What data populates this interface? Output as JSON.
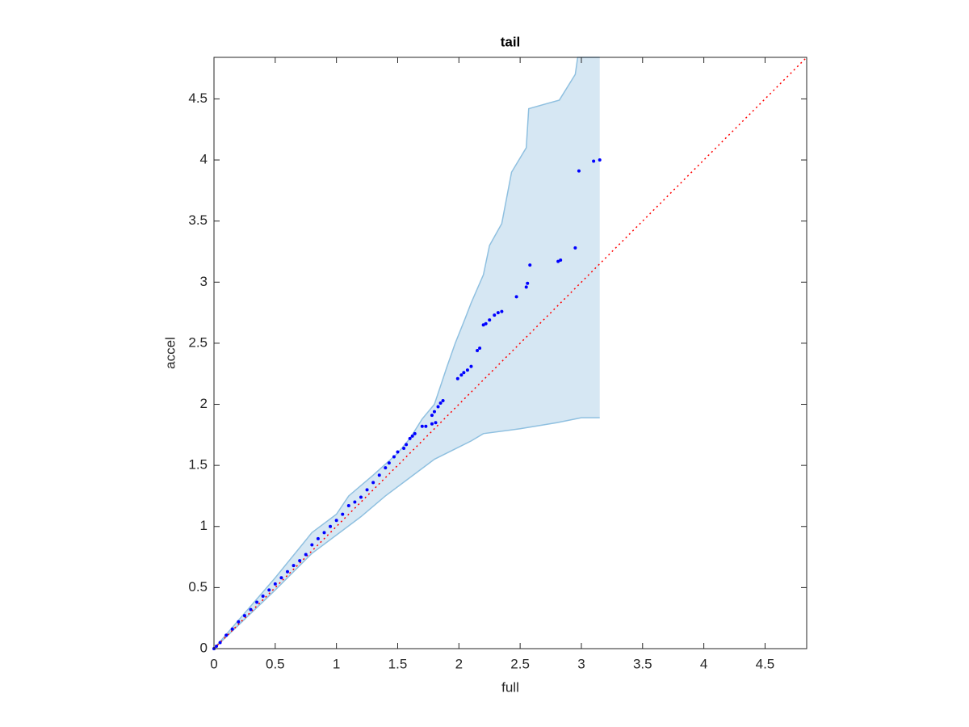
{
  "chart_data": {
    "type": "scatter",
    "title": "tail",
    "x_label": "full",
    "y_label": "accel",
    "xlim": [
      0,
      4.84
    ],
    "ylim": [
      0,
      4.84
    ],
    "xticks": [
      0,
      0.5,
      1,
      1.5,
      2,
      2.5,
      3,
      3.5,
      4,
      4.5
    ],
    "yticks": [
      0,
      0.5,
      1,
      1.5,
      2,
      2.5,
      3,
      3.5,
      4,
      4.5
    ],
    "color": "#0000ff",
    "x": [
      0,
      0.02,
      0.05,
      0.1,
      0.15,
      0.2,
      0.25,
      0.3,
      0.35,
      0.4,
      0.45,
      0.5,
      0.55,
      0.6,
      0.65,
      0.7,
      0.75,
      0.8,
      0.85,
      0.9,
      0.95,
      1.0,
      1.05,
      1.1,
      1.15,
      1.2,
      1.25,
      1.3,
      1.35,
      1.4,
      1.43,
      1.47,
      1.5,
      1.55,
      1.57,
      1.6,
      1.62,
      1.64,
      1.7,
      1.73,
      1.78,
      1.81,
      1.78,
      1.8,
      1.83,
      1.85,
      1.87,
      1.99,
      2.02,
      2.04,
      2.07,
      2.1,
      2.15,
      2.17,
      2.2,
      2.22,
      2.25,
      2.29,
      2.32,
      2.35,
      2.47,
      2.55,
      2.56,
      2.58,
      2.81,
      2.83,
      2.95,
      2.98,
      3.1,
      3.15
    ],
    "values": [
      0,
      0.02,
      0.05,
      0.11,
      0.16,
      0.22,
      0.27,
      0.32,
      0.38,
      0.43,
      0.48,
      0.53,
      0.58,
      0.63,
      0.68,
      0.72,
      0.77,
      0.85,
      0.9,
      0.95,
      1.0,
      1.05,
      1.1,
      1.17,
      1.2,
      1.24,
      1.3,
      1.36,
      1.42,
      1.48,
      1.52,
      1.57,
      1.61,
      1.64,
      1.67,
      1.72,
      1.74,
      1.76,
      1.82,
      1.82,
      1.84,
      1.85,
      1.91,
      1.94,
      1.98,
      2.01,
      2.03,
      2.21,
      2.24,
      2.26,
      2.28,
      2.31,
      2.44,
      2.46,
      2.65,
      2.66,
      2.69,
      2.73,
      2.75,
      2.76,
      2.88,
      2.96,
      2.99,
      3.14,
      3.17,
      3.18,
      3.28,
      3.91,
      3.99,
      4.0
    ],
    "band": {
      "color": "#d6e7f3",
      "edge_color": "#8fc0e0",
      "upper": {
        "x": [
          0,
          0.5,
          0.8,
          1.0,
          1.1,
          1.3,
          1.5,
          1.6,
          1.7,
          1.8,
          1.85,
          1.9,
          1.97,
          2.05,
          2.1,
          2.2,
          2.25,
          2.35,
          2.43,
          2.55,
          2.57,
          2.82,
          2.95,
          2.97,
          3.15
        ],
        "values": [
          0,
          0.58,
          0.95,
          1.1,
          1.25,
          1.42,
          1.6,
          1.72,
          1.88,
          2.0,
          2.15,
          2.3,
          2.5,
          2.7,
          2.83,
          3.06,
          3.3,
          3.48,
          3.9,
          4.1,
          4.42,
          4.49,
          4.7,
          4.84,
          4.84
        ]
      },
      "lower": {
        "x": [
          0,
          0.5,
          0.8,
          1.0,
          1.2,
          1.4,
          1.6,
          1.8,
          2.0,
          2.1,
          2.2,
          2.5,
          2.8,
          3.0,
          3.15
        ],
        "values": [
          0,
          0.48,
          0.78,
          0.93,
          1.08,
          1.25,
          1.4,
          1.55,
          1.65,
          1.7,
          1.76,
          1.8,
          1.85,
          1.89,
          1.89
        ]
      }
    },
    "reference_line": {
      "color": "#ff0000",
      "x": [
        0,
        4.84
      ],
      "values": [
        0,
        4.84
      ]
    }
  }
}
